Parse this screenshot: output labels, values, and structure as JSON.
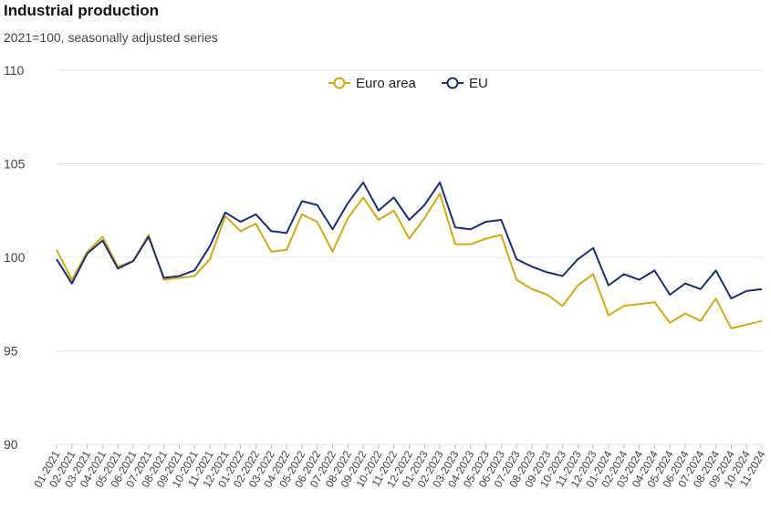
{
  "chart_data": {
    "type": "line",
    "title": "Industrial production",
    "subtitle": "2021=100, seasonally adjusted series",
    "xlabel": "",
    "ylabel": "",
    "ylim": [
      90,
      110
    ],
    "yticks": [
      90,
      95,
      100,
      105,
      110
    ],
    "grid": true,
    "legend_position": "top-center",
    "categories": [
      "01-2021",
      "02-2021",
      "03-2021",
      "04-2021",
      "05-2021",
      "06-2021",
      "07-2021",
      "08-2021",
      "09-2021",
      "10-2021",
      "11-2021",
      "12-2021",
      "01-2022",
      "02-2022",
      "03-2022",
      "04-2022",
      "05-2022",
      "06-2022",
      "07-2022",
      "08-2022",
      "09-2022",
      "10-2022",
      "11-2022",
      "12-2022",
      "01-2023",
      "02-2023",
      "03-2023",
      "04-2023",
      "05-2023",
      "06-2023",
      "07-2023",
      "08-2023",
      "09-2023",
      "10-2023",
      "11-2023",
      "12-2023",
      "01-2024",
      "02-2024",
      "03-2024",
      "04-2024",
      "05-2024",
      "06-2024",
      "07-2024",
      "08-2024",
      "09-2024",
      "10-2024",
      "11-2024"
    ],
    "series": [
      {
        "name": "Euro area",
        "color": "#d4a90f",
        "values": [
          100.4,
          98.8,
          100.3,
          101.1,
          99.5,
          99.8,
          101.2,
          98.8,
          98.9,
          99.0,
          99.9,
          102.2,
          101.4,
          101.8,
          100.3,
          100.4,
          102.3,
          101.9,
          100.3,
          102.1,
          103.2,
          102.0,
          102.5,
          101.0,
          102.1,
          103.4,
          100.7,
          100.7,
          101.0,
          101.2,
          98.8,
          98.3,
          98.0,
          97.4,
          98.5,
          99.1,
          96.9,
          97.4,
          97.5,
          97.6,
          96.5,
          97.0,
          96.6,
          97.8,
          96.2,
          96.4,
          96.6
        ]
      },
      {
        "name": "EU",
        "color": "#16307a",
        "values": [
          99.9,
          98.6,
          100.2,
          100.9,
          99.4,
          99.8,
          101.1,
          98.9,
          99.0,
          99.3,
          100.6,
          102.4,
          101.9,
          102.3,
          101.4,
          101.3,
          103.0,
          102.8,
          101.5,
          102.9,
          104.0,
          102.5,
          103.2,
          102.0,
          102.8,
          104.0,
          101.6,
          101.5,
          101.9,
          102.0,
          99.9,
          99.5,
          99.2,
          99.0,
          99.9,
          100.5,
          98.5,
          99.1,
          98.8,
          99.3,
          98.0,
          98.6,
          98.3,
          99.3,
          97.8,
          98.2,
          98.3
        ]
      }
    ]
  }
}
